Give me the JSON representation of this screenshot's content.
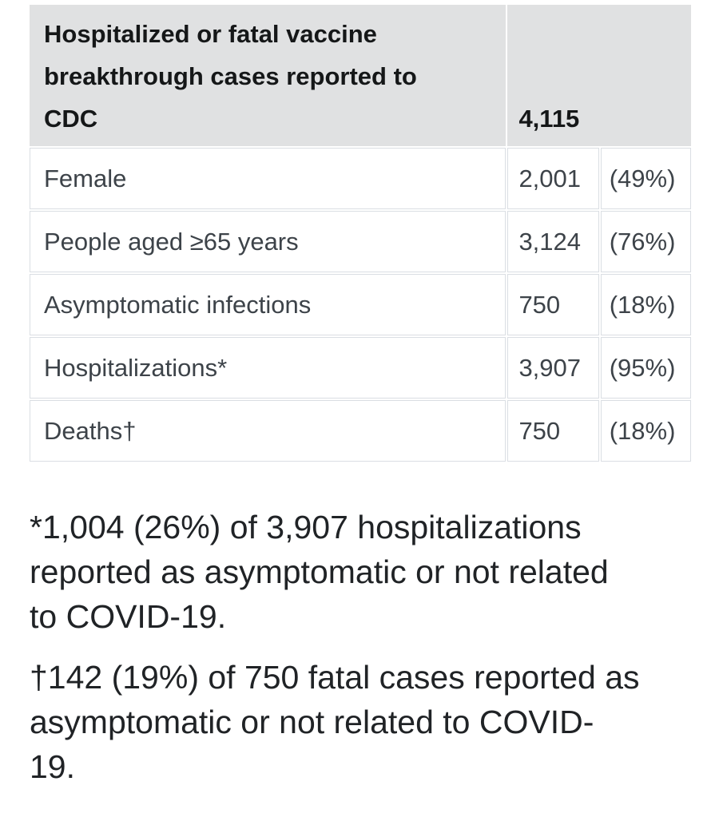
{
  "table": {
    "header": {
      "label": "Hospitalized or fatal vaccine breakthrough cases reported to CDC",
      "label_lines": [
        "Hospitalized or fatal vaccine",
        "breakthrough cases reported to",
        "CDC"
      ],
      "total": "4,115"
    },
    "rows": [
      {
        "label": "Female",
        "count": "2,001",
        "percent": "(49%)"
      },
      {
        "label": "People aged ≥65 years",
        "count": "3,124",
        "percent": "(76%)"
      },
      {
        "label": "Asymptomatic infections",
        "count": "750",
        "percent": "(18%)"
      },
      {
        "label": "Hospitalizations*",
        "count": "3,907",
        "percent": "(95%)"
      },
      {
        "label": "Deaths†",
        "count": "750",
        "percent": "(18%)"
      }
    ]
  },
  "footnotes": [
    {
      "text": "*1,004 (26%) of 3,907 hospitalizations reported as asymptomatic or not related to COVID-19.",
      "lines": [
        "*1,004 (26%) of 3,907 hospitalizations",
        "reported as asymptomatic or not related",
        "to COVID-19."
      ]
    },
    {
      "text": "†142 (19%) of 750 fatal cases reported as asymptomatic or not related to COVID-19.",
      "lines": [
        "†142 (19%) of 750 fatal cases reported as",
        "asymptomatic or not related to COVID-",
        "19."
      ]
    }
  ],
  "colors": {
    "page_bg": "#ffffff",
    "header_bg": "#e0e1e2",
    "cell_border": "#dadee3",
    "header_text": "#151718",
    "row_text": "#3d4349",
    "footnote_text": "#202326"
  }
}
